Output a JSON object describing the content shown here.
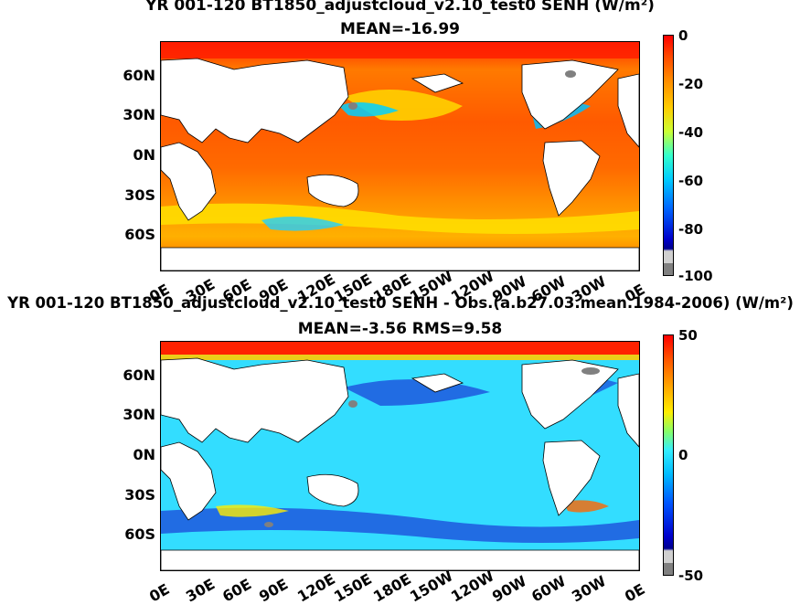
{
  "panel1": {
    "title_line1": "YR 001-120 BT1850_adjustcloud_v2.10_test0  SENH (W/m²)",
    "title_line2": "MEAN=-16.99",
    "colorbar": {
      "labels": [
        "0",
        "-20",
        "-40",
        "-60",
        "-80",
        "-100"
      ],
      "min": -100,
      "max": 0
    }
  },
  "panel2": {
    "title_line1": "YR 001-120 BT1850_adjustcloud_v2.10_test0  SENH - Obs.(a.b27.03.mean.1984-2006) (W/m²)",
    "title_line2": "MEAN=-3.56 RMS=9.58",
    "colorbar": {
      "labels": [
        "50",
        "0",
        "-50"
      ],
      "min": -50,
      "max": 50
    }
  },
  "lat_labels": [
    "60N",
    "30N",
    "0N",
    "30S",
    "60S"
  ],
  "lon_labels": [
    "0E",
    "30E",
    "60E",
    "90E",
    "120E",
    "150E",
    "180E",
    "150W",
    "120W",
    "90W",
    "60W",
    "30W",
    "0E"
  ],
  "colors": {
    "land": "#ffffff",
    "missing": "#808080",
    "coastline": "#000000"
  }
}
